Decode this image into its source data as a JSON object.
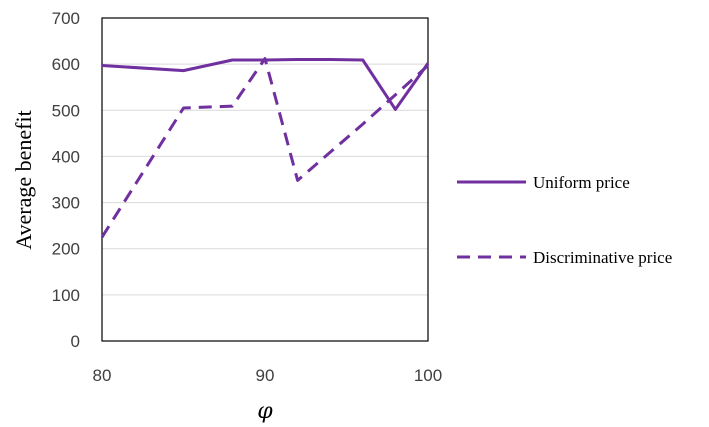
{
  "chart_data": {
    "type": "line",
    "title": "",
    "xlabel": "φ",
    "ylabel": "Average benefit",
    "xlim": [
      80,
      100
    ],
    "ylim": [
      0,
      700
    ],
    "xticks": [
      80,
      90,
      100
    ],
    "yticks": [
      0,
      100,
      200,
      300,
      400,
      500,
      600,
      700
    ],
    "grid": "horizontal",
    "legend_position": "right",
    "series": [
      {
        "name": "Uniform price",
        "style": "solid",
        "color": "#7030A0",
        "x": [
          80,
          85,
          88,
          90,
          92,
          94,
          96,
          98,
          100
        ],
        "y": [
          597,
          586,
          609,
          609,
          610,
          610,
          609,
          502,
          602
        ]
      },
      {
        "name": "Discriminative price",
        "style": "dashed",
        "color": "#7030A0",
        "x": [
          80,
          85,
          88,
          90,
          92,
          96,
          100
        ],
        "y": [
          225,
          505,
          509,
          612,
          348,
          470,
          597
        ]
      }
    ]
  }
}
